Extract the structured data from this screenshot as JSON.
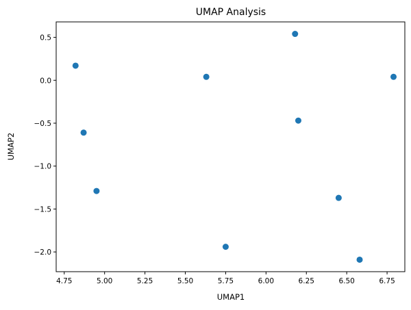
{
  "chart_data": {
    "type": "scatter",
    "title": "UMAP Analysis",
    "xlabel": "UMAP1",
    "ylabel": "UMAP2",
    "xlim": [
      4.7,
      6.86
    ],
    "ylim": [
      -2.23,
      0.68
    ],
    "xticks": [
      4.75,
      5.0,
      5.25,
      5.5,
      5.75,
      6.0,
      6.25,
      6.5,
      6.75
    ],
    "xtick_labels": [
      "4.75",
      "5.00",
      "5.25",
      "5.50",
      "5.75",
      "6.00",
      "6.25",
      "6.50",
      "6.75"
    ],
    "yticks": [
      0.5,
      0.0,
      -0.5,
      -1.0,
      -1.5,
      -2.0
    ],
    "ytick_labels": [
      "0.5",
      "0.0",
      "−0.5",
      "−1.0",
      "−1.5",
      "−2.0"
    ],
    "grid": false,
    "series": [
      {
        "color": "#1f77b4",
        "points": [
          {
            "x": 4.82,
            "y": 0.17
          },
          {
            "x": 4.87,
            "y": -0.61
          },
          {
            "x": 4.95,
            "y": -1.29
          },
          {
            "x": 5.63,
            "y": 0.04
          },
          {
            "x": 5.75,
            "y": -1.94
          },
          {
            "x": 6.18,
            "y": 0.54
          },
          {
            "x": 6.2,
            "y": -0.47
          },
          {
            "x": 6.45,
            "y": -1.37
          },
          {
            "x": 6.58,
            "y": -2.09
          },
          {
            "x": 6.79,
            "y": 0.04
          }
        ]
      }
    ]
  }
}
